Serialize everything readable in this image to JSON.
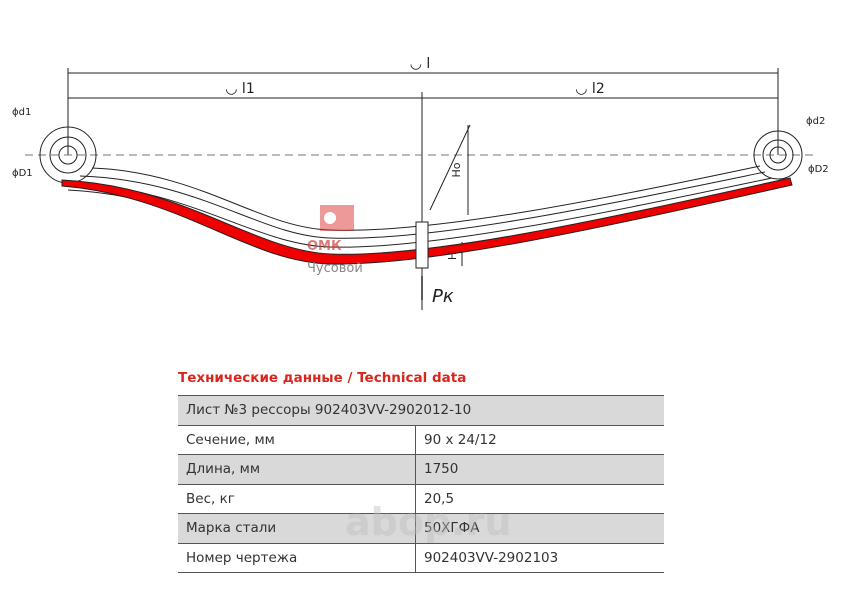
{
  "drawing": {
    "labels": {
      "l": "◡ l",
      "l1": "◡ l1",
      "l2": "◡ l2",
      "d1": "ϕd1",
      "D1": "ϕD1",
      "d2": "ϕd2",
      "D2": "ϕD2",
      "Ho": "Ho",
      "H": "H",
      "Pk": "Pк"
    },
    "logo": {
      "name": "ОМК",
      "city": "Чусовой"
    },
    "watermark": "abop.ru"
  },
  "table": {
    "title": "Технические данные / Technical data",
    "header": "Лист №3 рессоры 902403VV-2902012-10",
    "rows": [
      [
        "Сечение, мм",
        "90 x 24/12"
      ],
      [
        "Длина, мм",
        "1750"
      ],
      [
        "Вес, кг",
        "20,5"
      ],
      [
        "Марка стали",
        "50ХГФА"
      ],
      [
        "Номер чертежа",
        "902403VV-2902103"
      ]
    ]
  }
}
